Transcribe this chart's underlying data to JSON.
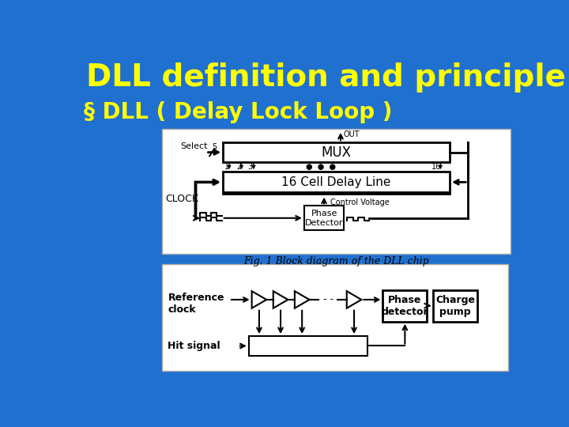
{
  "title": "DLL definition and principle",
  "bullet": "§ DLL ( Delay Lock Loop )",
  "bg_color": "#2070d0",
  "title_color": "#ffff00",
  "bullet_color": "#ffff00",
  "title_fontsize": 28,
  "bullet_fontsize": 20,
  "diagram1_caption": "Fig. 1 Block diagram of the DLL chip",
  "diagram2_labels": {
    "ref_clock": "Reference\nclock",
    "hit_signal": "Hit signal",
    "phase_detector": "Phase\ndetector",
    "charge_pump": "Charge\npump"
  },
  "diagram1_labels": {
    "out": "OUT",
    "mux": "MUX",
    "select": "Select",
    "delay_line": "16 Cell Delay Line",
    "clock": "CLOCK",
    "control_voltage": "Control Voltage",
    "phase_detector": "Phase\nDetector",
    "five": "5",
    "one": "1",
    "two": "2",
    "three": "3",
    "sixteen": "16"
  }
}
